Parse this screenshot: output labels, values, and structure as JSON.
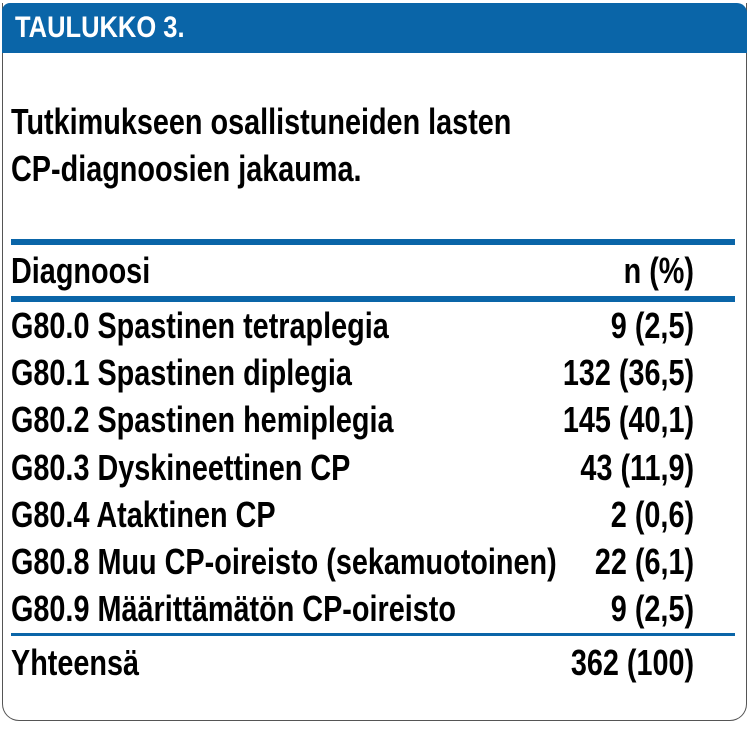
{
  "header": {
    "bar_title": "TAULUKKO 3."
  },
  "caption": {
    "text": "Tutkimukseen osallistuneiden lasten\nCP-diagnoosien jakauma."
  },
  "table": {
    "columns": [
      {
        "label": "Diagnoosi"
      },
      {
        "label": "n (%)"
      }
    ],
    "rows": [
      {
        "diagnosis": "G80.0 Spastinen tetraplegia",
        "value": "9 (2,5)"
      },
      {
        "diagnosis": "G80.1 Spastinen diplegia",
        "value": "132 (36,5)"
      },
      {
        "diagnosis": "G80.2 Spastinen hemiplegia",
        "value": "145 (40,1)"
      },
      {
        "diagnosis": "G80.3 Dyskineettinen CP",
        "value": "43 (11,9)"
      },
      {
        "diagnosis": "G80.4 Ataktinen CP",
        "value": "2 (0,6)"
      },
      {
        "diagnosis": "G80.8 Muu CP-oireisto (sekamuotoinen)",
        "value": "22 (6,1)"
      },
      {
        "diagnosis": "G80.9 Määrittämätön CP-oireisto",
        "value": "9 (2,5)"
      }
    ],
    "total": {
      "label": "Yhteensä",
      "value": "362 (100)"
    }
  },
  "chart_data": {
    "type": "table",
    "title": "TAULUKKO 3. Tutkimukseen osallistuneiden lasten CP-diagnoosien jakauma.",
    "columns": [
      "Diagnoosi",
      "n (%)"
    ],
    "rows": [
      [
        "G80.0 Spastinen tetraplegia",
        "9 (2,5)"
      ],
      [
        "G80.1 Spastinen diplegia",
        "132 (36,5)"
      ],
      [
        "G80.2 Spastinen hemiplegia",
        "145 (40,1)"
      ],
      [
        "G80.3 Dyskineettinen CP",
        "43 (11,9)"
      ],
      [
        "G80.4 Ataktinen CP",
        "2 (0,6)"
      ],
      [
        "G80.8 Muu CP-oireisto (sekamuotoinen)",
        "22 (6,1)"
      ],
      [
        "G80.9 Määrittämätön CP-oireisto",
        "9 (2,5)"
      ],
      [
        "Yhteensä",
        "362 (100)"
      ]
    ],
    "n_values": [
      9,
      132,
      145,
      43,
      2,
      22,
      9
    ],
    "percent_values": [
      2.5,
      36.5,
      40.1,
      11.9,
      0.6,
      6.1,
      2.5
    ],
    "total_n": 362,
    "total_percent": 100
  },
  "colors": {
    "accent_blue": "#0a65a8",
    "border_gray": "#555555",
    "text_black": "#000000",
    "bar_text_white": "#ffffff"
  }
}
